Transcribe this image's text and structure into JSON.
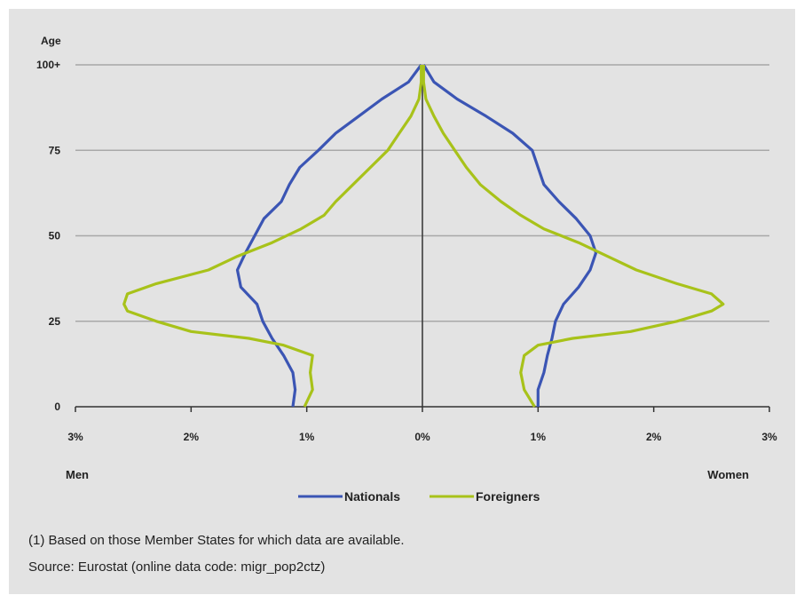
{
  "chart_data": {
    "type": "line",
    "subtype": "population-pyramid",
    "ylabel": "Age",
    "y_ticks": [
      "0",
      "25",
      "50",
      "75",
      "100+"
    ],
    "y_tick_values": [
      0,
      25,
      50,
      75,
      100
    ],
    "x_ticks": [
      "3%",
      "2%",
      "1%",
      "0%",
      "1%",
      "2%",
      "3%"
    ],
    "x_tick_values": [
      -3,
      -2,
      -1,
      0,
      1,
      2,
      3
    ],
    "xlim": [
      -3,
      3
    ],
    "ylim": [
      0,
      100
    ],
    "left_label": "Men",
    "right_label": "Women",
    "grid": true,
    "legend_position": "bottom",
    "series": [
      {
        "name": "Nationals",
        "color": "#3b55b4",
        "men": [
          [
            0,
            1.12
          ],
          [
            5,
            1.1
          ],
          [
            10,
            1.12
          ],
          [
            15,
            1.2
          ],
          [
            20,
            1.3
          ],
          [
            25,
            1.38
          ],
          [
            30,
            1.43
          ],
          [
            35,
            1.57
          ],
          [
            40,
            1.6
          ],
          [
            45,
            1.53
          ],
          [
            50,
            1.45
          ],
          [
            55,
            1.37
          ],
          [
            60,
            1.22
          ],
          [
            65,
            1.15
          ],
          [
            70,
            1.06
          ],
          [
            75,
            0.9
          ],
          [
            80,
            0.75
          ],
          [
            85,
            0.55
          ],
          [
            90,
            0.35
          ],
          [
            95,
            0.12
          ],
          [
            100,
            0.01
          ]
        ],
        "women": [
          [
            0,
            1.0
          ],
          [
            5,
            1.0
          ],
          [
            10,
            1.05
          ],
          [
            15,
            1.08
          ],
          [
            20,
            1.12
          ],
          [
            25,
            1.15
          ],
          [
            30,
            1.22
          ],
          [
            35,
            1.35
          ],
          [
            40,
            1.45
          ],
          [
            45,
            1.5
          ],
          [
            50,
            1.45
          ],
          [
            55,
            1.33
          ],
          [
            60,
            1.18
          ],
          [
            65,
            1.05
          ],
          [
            70,
            1.0
          ],
          [
            75,
            0.95
          ],
          [
            80,
            0.78
          ],
          [
            85,
            0.55
          ],
          [
            90,
            0.3
          ],
          [
            95,
            0.1
          ],
          [
            100,
            0.01
          ]
        ]
      },
      {
        "name": "Foreigners",
        "color": "#a8c21a",
        "men": [
          [
            0,
            1.02
          ],
          [
            5,
            0.95
          ],
          [
            10,
            0.97
          ],
          [
            15,
            0.95
          ],
          [
            18,
            1.2
          ],
          [
            20,
            1.5
          ],
          [
            22,
            2.0
          ],
          [
            25,
            2.3
          ],
          [
            28,
            2.55
          ],
          [
            30,
            2.58
          ],
          [
            33,
            2.55
          ],
          [
            36,
            2.3
          ],
          [
            40,
            1.85
          ],
          [
            44,
            1.6
          ],
          [
            48,
            1.3
          ],
          [
            52,
            1.05
          ],
          [
            56,
            0.85
          ],
          [
            60,
            0.75
          ],
          [
            65,
            0.6
          ],
          [
            70,
            0.45
          ],
          [
            75,
            0.3
          ],
          [
            80,
            0.2
          ],
          [
            85,
            0.1
          ],
          [
            90,
            0.03
          ],
          [
            95,
            0.01
          ],
          [
            100,
            0.01
          ]
        ],
        "women": [
          [
            0,
            0.97
          ],
          [
            5,
            0.88
          ],
          [
            10,
            0.85
          ],
          [
            15,
            0.88
          ],
          [
            18,
            1.0
          ],
          [
            20,
            1.3
          ],
          [
            22,
            1.8
          ],
          [
            25,
            2.2
          ],
          [
            28,
            2.5
          ],
          [
            30,
            2.6
          ],
          [
            33,
            2.5
          ],
          [
            36,
            2.2
          ],
          [
            40,
            1.85
          ],
          [
            44,
            1.6
          ],
          [
            48,
            1.35
          ],
          [
            52,
            1.05
          ],
          [
            56,
            0.85
          ],
          [
            60,
            0.68
          ],
          [
            65,
            0.5
          ],
          [
            70,
            0.38
          ],
          [
            75,
            0.28
          ],
          [
            80,
            0.18
          ],
          [
            85,
            0.1
          ],
          [
            90,
            0.03
          ],
          [
            95,
            0.01
          ],
          [
            100,
            0.01
          ]
        ]
      }
    ]
  },
  "notes": [
    "(1) Based on those Member States for which data are available.",
    "Source: Eurostat (online data code: migr_pop2ctz)"
  ]
}
